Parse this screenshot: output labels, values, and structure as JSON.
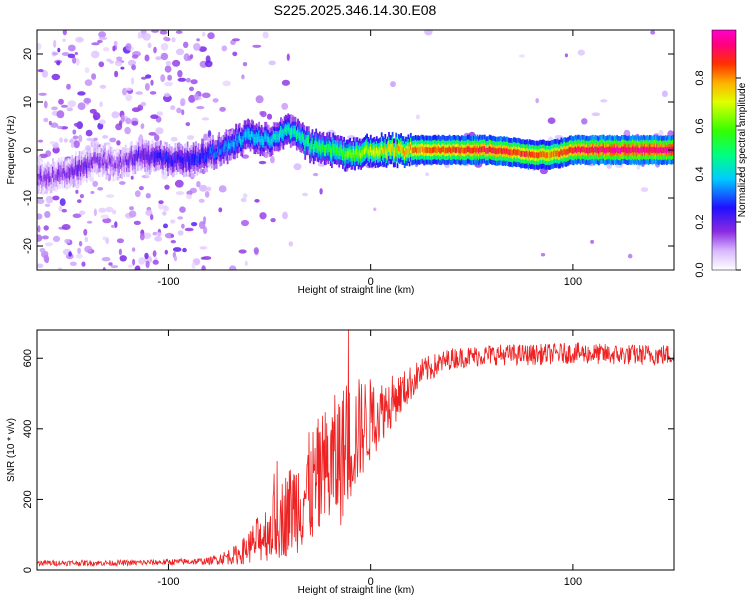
{
  "title": "S225.2025.346.14.30.E08",
  "chart_data": [
    {
      "type": "heatmap",
      "name": "spectrogram",
      "xlabel": "Height of straight line (km)",
      "ylabel": "Frequency (Hz)",
      "xlim": [
        -165,
        150
      ],
      "ylim": [
        -25,
        25
      ],
      "xticks": [
        -100,
        0,
        100
      ],
      "yticks": [
        -20,
        -10,
        0,
        10,
        20
      ],
      "colorbar": {
        "label": "Normalized spectral amplitude",
        "ticks": [
          "0.0",
          "0.2",
          "0.4",
          "0.6",
          "0.8"
        ],
        "tick_values": [
          0,
          0.2,
          0.4,
          0.6,
          0.8
        ],
        "range": [
          0,
          1
        ]
      },
      "ridge": {
        "description_points_x": [
          -165,
          -155,
          -145,
          -135,
          -125,
          -115,
          -100,
          -90,
          -80,
          -70,
          -60,
          -50,
          -40,
          -30,
          -20,
          -10,
          0,
          10,
          20,
          40,
          60,
          80,
          90,
          100,
          120,
          150
        ],
        "description_points_y": [
          -6,
          -5,
          -4,
          -2,
          -3,
          -1,
          -2,
          -2,
          -1,
          1,
          3,
          2,
          4,
          1,
          0,
          -1,
          0,
          0,
          0,
          0,
          0,
          -1,
          -1,
          0,
          0,
          0
        ],
        "amplitude": [
          0.15,
          0.15,
          0.2,
          0.15,
          0.15,
          0.2,
          0.25,
          0.25,
          0.3,
          0.35,
          0.4,
          0.4,
          0.45,
          0.5,
          0.55,
          0.6,
          0.7,
          0.75,
          0.8,
          0.85,
          0.9,
          0.85,
          0.8,
          0.9,
          0.95,
          0.95
        ]
      }
    },
    {
      "type": "line",
      "name": "snr",
      "xlabel": "Height of straight line (km)",
      "ylabel": "SNR (10 * v/v)",
      "xlim": [
        -165,
        150
      ],
      "ylim": [
        0,
        680
      ],
      "xticks": [
        -100,
        0,
        100
      ],
      "yticks": [
        0,
        200,
        400,
        600
      ],
      "color": "#ee2222",
      "envelope_x": [
        -165,
        -120,
        -80,
        -65,
        -55,
        -45,
        -35,
        -25,
        -15,
        -5,
        5,
        15,
        25,
        40,
        60,
        80,
        100,
        120,
        150
      ],
      "envelope_y": [
        20,
        20,
        25,
        45,
        90,
        140,
        200,
        260,
        320,
        400,
        450,
        500,
        560,
        600,
        610,
        610,
        615,
        610,
        610
      ],
      "noise_amplitude": [
        8,
        8,
        10,
        30,
        70,
        110,
        150,
        180,
        200,
        150,
        90,
        60,
        40,
        30,
        30,
        30,
        30,
        30,
        30
      ]
    }
  ]
}
